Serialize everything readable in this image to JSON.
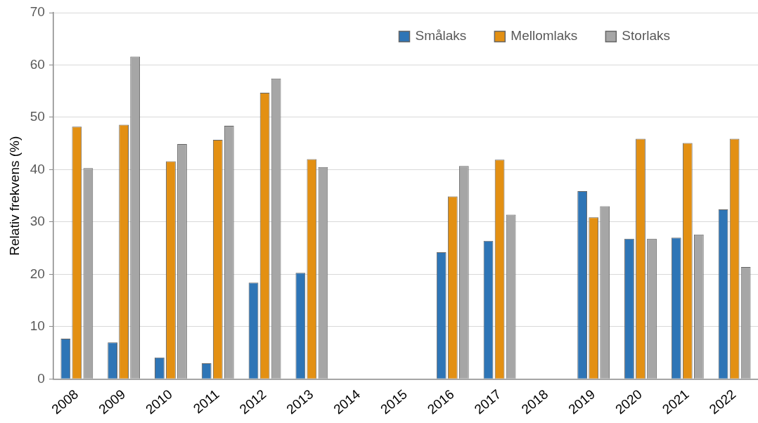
{
  "chart_data": {
    "type": "bar",
    "ylabel": "Relativ frekvens (%)",
    "categories": [
      "2008",
      "2009",
      "2010",
      "2011",
      "2012",
      "2013",
      "2014",
      "2015",
      "2016",
      "2017",
      "2018",
      "2019",
      "2020",
      "2021",
      "2022"
    ],
    "series": [
      {
        "name": "Smålaks",
        "color": "#2e75b6",
        "values": [
          7.7,
          7.0,
          4.1,
          3.0,
          18.4,
          20.3,
          null,
          null,
          24.2,
          26.4,
          null,
          35.9,
          26.8,
          27.0,
          32.4
        ]
      },
      {
        "name": "Mellomlaks",
        "color": "#e39013",
        "values": [
          48.2,
          48.6,
          41.6,
          45.7,
          54.7,
          42.0,
          null,
          null,
          34.9,
          41.9,
          null,
          30.9,
          45.9,
          45.1,
          45.9
        ]
      },
      {
        "name": "Storlaks",
        "color": "#a6a6a6",
        "values": [
          40.3,
          61.6,
          44.9,
          48.4,
          57.4,
          40.5,
          null,
          null,
          40.7,
          31.4,
          null,
          33.0,
          26.8,
          27.6,
          21.4
        ]
      }
    ],
    "ylim": [
      0,
      70
    ],
    "yticks": [
      0,
      10,
      20,
      30,
      40,
      50,
      60,
      70
    ],
    "grid": "y",
    "legend": "top right"
  }
}
